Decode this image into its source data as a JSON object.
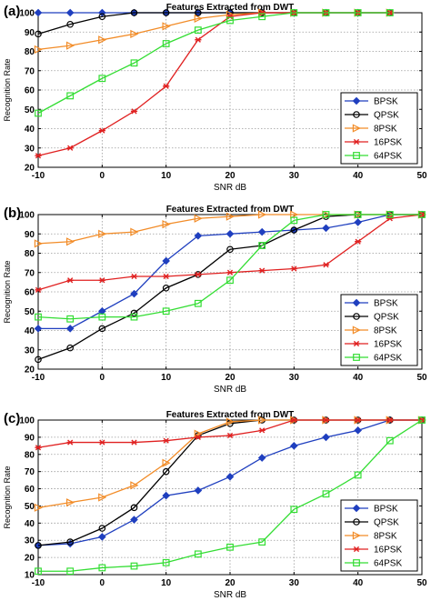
{
  "chart_data": [
    {
      "type": "line",
      "panel_label": "(a)",
      "title": "Features Extracted from DWT",
      "xlabel": "SNR dB",
      "ylabel": "Recognition Rate",
      "xlim": [
        -10,
        50
      ],
      "ylim": [
        20,
        100
      ],
      "xticks": [
        "-10",
        "0",
        "10",
        "20",
        "30",
        "40",
        "50"
      ],
      "yticks": [
        "20",
        "30",
        "40",
        "50",
        "60",
        "70",
        "80",
        "90",
        "100"
      ],
      "grid": "on",
      "legend_position": "bottom-right",
      "x": [
        -10,
        -5,
        0,
        5,
        10,
        15,
        20,
        25,
        30,
        35,
        40,
        45
      ],
      "series": [
        {
          "name": "BPSK",
          "color": "#1f3fbf",
          "marker": "diamond",
          "values": [
            100,
            100,
            100,
            100,
            100,
            100,
            100,
            100,
            100,
            100,
            100,
            100
          ]
        },
        {
          "name": "QPSK",
          "color": "#000000",
          "marker": "circle",
          "values": [
            89,
            94,
            98,
            100,
            100,
            100,
            100,
            100,
            100,
            100,
            100,
            100
          ]
        },
        {
          "name": "8PSK",
          "color": "#f28c28",
          "marker": "triangle-right",
          "values": [
            81,
            83,
            86,
            89,
            93,
            97,
            99,
            100,
            100,
            100,
            100,
            100
          ]
        },
        {
          "name": "16PSK",
          "color": "#e02020",
          "marker": "star",
          "values": [
            26,
            30,
            39,
            49,
            62,
            86,
            98,
            100,
            100,
            100,
            100,
            100
          ]
        },
        {
          "name": "64PSK",
          "color": "#33dd33",
          "marker": "square",
          "values": [
            48,
            57,
            66,
            74,
            84,
            91,
            96,
            98,
            100,
            100,
            100,
            100
          ]
        }
      ]
    },
    {
      "type": "line",
      "panel_label": "(b)",
      "title": "Features Extracted from DWT",
      "xlabel": "SNR dB",
      "ylabel": "Recognition Rate",
      "xlim": [
        -10,
        50
      ],
      "ylim": [
        20,
        100
      ],
      "xticks": [
        "-10",
        "0",
        "10",
        "20",
        "30",
        "40",
        "50"
      ],
      "yticks": [
        "20",
        "30",
        "40",
        "50",
        "60",
        "70",
        "80",
        "90",
        "100"
      ],
      "grid": "on",
      "legend_position": "bottom-right",
      "x": [
        -10,
        -5,
        0,
        5,
        10,
        15,
        20,
        25,
        30,
        35,
        40,
        45,
        50
      ],
      "series": [
        {
          "name": "BPSK",
          "color": "#1f3fbf",
          "marker": "diamond",
          "values": [
            41,
            41,
            50,
            59,
            76,
            89,
            90,
            91,
            92,
            93,
            96,
            100,
            100
          ]
        },
        {
          "name": "QPSK",
          "color": "#000000",
          "marker": "circle",
          "values": [
            25,
            31,
            41,
            49,
            62,
            69,
            82,
            84,
            92,
            99,
            100,
            100,
            100
          ]
        },
        {
          "name": "8PSK",
          "color": "#f28c28",
          "marker": "triangle-right",
          "values": [
            85,
            86,
            90,
            91,
            95,
            98,
            99,
            100,
            100,
            100,
            100,
            100,
            100
          ]
        },
        {
          "name": "16PSK",
          "color": "#e02020",
          "marker": "star",
          "values": [
            61,
            66,
            66,
            68,
            68,
            69,
            70,
            71,
            72,
            74,
            86,
            98,
            100
          ]
        },
        {
          "name": "64PSK",
          "color": "#33dd33",
          "marker": "square",
          "values": [
            47,
            46,
            47,
            47,
            50,
            54,
            66,
            84,
            97,
            100,
            100,
            100,
            100
          ]
        }
      ]
    },
    {
      "type": "line",
      "panel_label": "(c)",
      "title": "Features Extracted from DWT",
      "xlabel": "SNR dB",
      "ylabel": "Recognition Rate",
      "xlim": [
        -10,
        50
      ],
      "ylim": [
        10,
        100
      ],
      "xticks": [
        "-10",
        "0",
        "10",
        "20",
        "30",
        "40",
        "50"
      ],
      "yticks": [
        "10",
        "20",
        "30",
        "40",
        "50",
        "60",
        "70",
        "80",
        "90",
        "100"
      ],
      "grid": "on",
      "legend_position": "bottom-right",
      "x": [
        -10,
        -5,
        0,
        5,
        10,
        15,
        20,
        25,
        30,
        35,
        40,
        45,
        50
      ],
      "series": [
        {
          "name": "BPSK",
          "color": "#1f3fbf",
          "marker": "diamond",
          "values": [
            27,
            28,
            32,
            42,
            56,
            59,
            67,
            78,
            85,
            90,
            94,
            100,
            100
          ]
        },
        {
          "name": "QPSK",
          "color": "#000000",
          "marker": "circle",
          "values": [
            27,
            29,
            37,
            49,
            70,
            91,
            98,
            100,
            100,
            100,
            100,
            100,
            100
          ]
        },
        {
          "name": "8PSK",
          "color": "#f28c28",
          "marker": "triangle-right",
          "values": [
            49,
            52,
            55,
            62,
            75,
            92,
            99,
            100,
            100,
            100,
            100,
            100,
            100
          ]
        },
        {
          "name": "16PSK",
          "color": "#e02020",
          "marker": "star",
          "values": [
            84,
            87,
            87,
            87,
            88,
            90,
            91,
            94,
            100,
            100,
            100,
            100,
            100
          ]
        },
        {
          "name": "64PSK",
          "color": "#33dd33",
          "marker": "square",
          "values": [
            12,
            12,
            14,
            15,
            17,
            22,
            26,
            29,
            48,
            57,
            68,
            88,
            100
          ]
        }
      ]
    }
  ]
}
